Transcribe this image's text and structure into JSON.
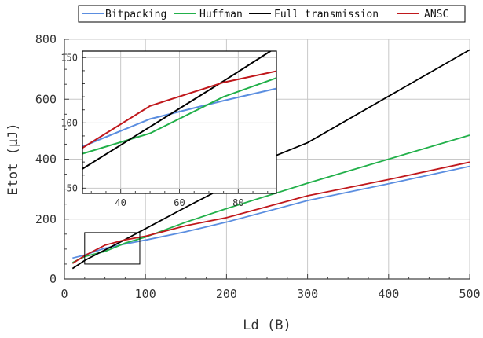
{
  "chart_data": {
    "type": "line",
    "xlabel": "Ld (B)",
    "ylabel": "Etot (µJ)",
    "xlim": [
      0,
      500
    ],
    "ylim": [
      0,
      800
    ],
    "xticks": [
      0,
      100,
      200,
      300,
      400,
      500
    ],
    "yticks": [
      0,
      200,
      400,
      600,
      800
    ],
    "grid": true,
    "legend_placement": "top-center",
    "series": [
      {
        "name": "Bitpacking",
        "color": "#5b8ee0",
        "x": [
          10,
          25,
          50,
          75,
          100,
          150,
          200,
          300,
          400,
          500
        ],
        "y": [
          70,
          80,
          103,
          117,
          130,
          158,
          190,
          262,
          318,
          376
        ]
      },
      {
        "name": "Huffman",
        "color": "#22b04a",
        "x": [
          10,
          25,
          50,
          75,
          100,
          150,
          200,
          300,
          400,
          500
        ],
        "y": [
          55,
          75,
          92,
          120,
          140,
          190,
          235,
          320,
          400,
          480
        ]
      },
      {
        "name": "Full transmission",
        "color": "#000000",
        "x": [
          10,
          25,
          50,
          75,
          100,
          150,
          200,
          250,
          300,
          400,
          500
        ],
        "y": [
          35,
          62,
          97,
          132,
          168,
          240,
          310,
          400,
          455,
          610,
          765
        ]
      },
      {
        "name": "ANSC",
        "color": "#c0181c",
        "x": [
          10,
          25,
          50,
          75,
          100,
          150,
          200,
          300,
          400,
          500
        ],
        "y": [
          52,
          78,
          113,
          131,
          143,
          178,
          205,
          278,
          332,
          390
        ]
      }
    ],
    "inset": {
      "xlim": [
        27,
        93
      ],
      "ylim": [
        46,
        155
      ],
      "xticks": [
        40,
        60,
        80
      ],
      "yticks": [
        50,
        100,
        150
      ],
      "zoom_region": {
        "x": [
          25,
          93
        ],
        "y": [
          50,
          155
        ]
      }
    }
  }
}
